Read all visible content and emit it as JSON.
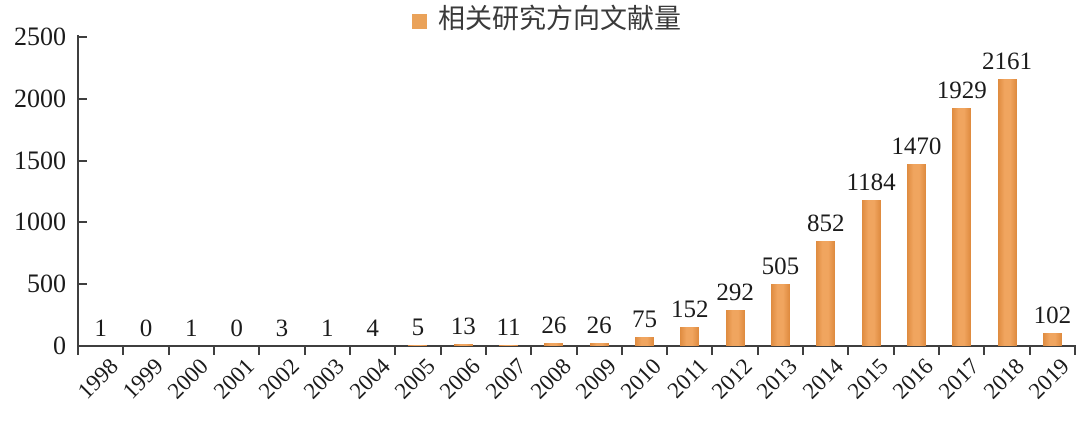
{
  "legend": {
    "label": "相关研究方向文献量",
    "marker_color": "#EAA259"
  },
  "chart_data": {
    "type": "bar",
    "title": "",
    "xlabel": "",
    "ylabel": "",
    "categories": [
      "1998",
      "1999",
      "2000",
      "2001",
      "2002",
      "2003",
      "2004",
      "2005",
      "2006",
      "2007",
      "2008",
      "2009",
      "2010",
      "2011",
      "2012",
      "2013",
      "2014",
      "2015",
      "2016",
      "2017",
      "2018",
      "2019"
    ],
    "values": [
      1,
      0,
      1,
      0,
      3,
      1,
      4,
      5,
      13,
      11,
      26,
      26,
      75,
      152,
      292,
      505,
      852,
      1184,
      1470,
      1929,
      2161,
      102
    ],
    "series": [
      {
        "name": "相关研究方向文献量",
        "values": [
          1,
          0,
          1,
          0,
          3,
          1,
          4,
          5,
          13,
          11,
          26,
          26,
          75,
          152,
          292,
          505,
          852,
          1184,
          1470,
          1929,
          2161,
          102
        ]
      }
    ],
    "ylim": [
      0,
      2500
    ],
    "yticks": [
      0,
      500,
      1000,
      1500,
      2000,
      2500
    ],
    "grid": false,
    "data_labels": true,
    "xtick_rotation": 45,
    "legend_position": "top",
    "bar_color": "#F0A55F",
    "bar_edge_color": "#DE8A3E",
    "axis_color": "#3F3F3F",
    "text_color": "#1B1B1B"
  }
}
